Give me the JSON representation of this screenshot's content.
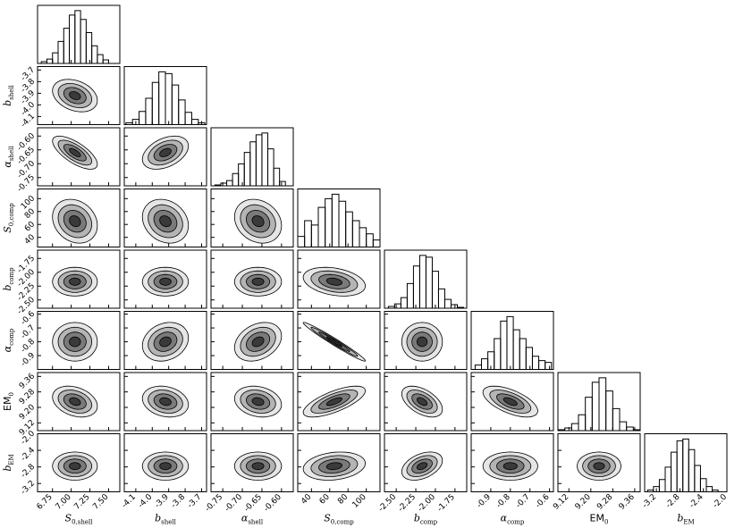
{
  "chart_data": {
    "type": "corner",
    "parameters": [
      {
        "symbol": "S",
        "sub": "0,shell",
        "lim": [
          6.55,
          7.65
        ],
        "ticks": [
          6.75,
          {
            "value": 7,
            "label": "7.00"
          },
          7.25,
          {
            "value": 7.5,
            "label": "7.50"
          }
        ],
        "mean": 7.05,
        "sd": 0.15,
        "bins": [
          6.6,
          6.675,
          6.75,
          6.825,
          6.9,
          6.975,
          7.05,
          7.125,
          7.2,
          7.275,
          7.35,
          7.425,
          7.5
        ],
        "counts": [
          2,
          5,
          12,
          25,
          40,
          55,
          60,
          50,
          35,
          20,
          10,
          4
        ]
      },
      {
        "symbol": "b",
        "sub": "shell",
        "lim": [
          -4.17,
          -3.67
        ],
        "ticks": [
          -4.1,
          {
            "value": -4,
            "label": "-4.0"
          },
          -3.9,
          -3.8,
          -3.7
        ],
        "mean": -3.92,
        "sd": 0.07,
        "bins": [
          -4.16,
          -4.12,
          -4.08,
          -4.04,
          -4.0,
          -3.96,
          -3.92,
          -3.88,
          -3.84,
          -3.8,
          -3.76,
          -3.72,
          -3.68
        ],
        "counts": [
          2,
          6,
          15,
          30,
          48,
          60,
          58,
          45,
          28,
          14,
          6,
          2
        ]
      },
      {
        "symbol": "α",
        "sub": "shell",
        "lim": [
          -0.78,
          -0.57
        ],
        "ticks": [
          -0.75,
          {
            "value": -0.7,
            "label": "-0.70"
          },
          -0.65,
          {
            "value": -0.6,
            "label": "-0.60"
          }
        ],
        "mean": -0.66,
        "sd": 0.03,
        "bins": [
          -0.77,
          -0.755,
          -0.74,
          -0.725,
          -0.71,
          -0.695,
          -0.68,
          -0.665,
          -0.65,
          -0.635,
          -0.62,
          -0.605,
          -0.59
        ],
        "counts": [
          1,
          3,
          6,
          14,
          25,
          38,
          50,
          58,
          60,
          42,
          20,
          5
        ]
      },
      {
        "symbol": "S",
        "sub": "0,comp",
        "lim": [
          25,
          115
        ],
        "ticks": [
          40,
          60,
          80,
          100
        ],
        "mean": 65,
        "sd": 17,
        "bins": [
          25,
          32.5,
          40,
          47.5,
          55,
          62.5,
          70,
          77.5,
          85,
          92.5,
          100,
          107.5,
          115
        ],
        "counts": [
          12,
          30,
          25,
          45,
          55,
          60,
          52,
          40,
          30,
          22,
          15,
          8
        ]
      },
      {
        "symbol": "b",
        "sub": "comp",
        "lim": [
          -2.65,
          -1.6
        ],
        "ticks": [
          {
            "value": -2.5,
            "label": "-2.50"
          },
          -2.25,
          {
            "value": -2,
            "label": "-2.00"
          },
          -1.75
        ],
        "mean": -2.17,
        "sd": 0.13,
        "bins": [
          -2.6,
          -2.52,
          -2.44,
          -2.36,
          -2.28,
          -2.2,
          -2.12,
          -2.04,
          -1.96,
          -1.88,
          -1.8,
          -1.72,
          -1.64
        ],
        "counts": [
          2,
          5,
          12,
          28,
          48,
          60,
          58,
          42,
          22,
          10,
          4,
          1
        ]
      },
      {
        "symbol": "α",
        "sub": "comp",
        "lim": [
          -1.0,
          -0.58
        ],
        "ticks": [
          -0.9,
          -0.8,
          -0.7,
          -0.6
        ],
        "mean": -0.8,
        "sd": 0.07,
        "bins": [
          -0.98,
          -0.9475,
          -0.915,
          -0.8825,
          -0.85,
          -0.8175,
          -0.785,
          -0.7525,
          -0.72,
          -0.6875,
          -0.655,
          -0.6225,
          -0.59
        ],
        "counts": [
          5,
          12,
          20,
          35,
          55,
          60,
          45,
          35,
          25,
          15,
          10,
          8
        ]
      },
      {
        "symbol": "EM",
        "sub": "0",
        "lim": [
          9.08,
          9.38
        ],
        "ticks": [
          9.12,
          {
            "value": 9.2,
            "label": "9.20"
          },
          9.28,
          9.36
        ],
        "mean": 9.23,
        "sd": 0.04,
        "bins": [
          9.08,
          9.105,
          9.13,
          9.155,
          9.18,
          9.205,
          9.23,
          9.255,
          9.28,
          9.305,
          9.33,
          9.355,
          9.38
        ],
        "counts": [
          1,
          3,
          8,
          18,
          38,
          55,
          60,
          45,
          25,
          10,
          4,
          1
        ]
      },
      {
        "symbol": "b",
        "sub": "EM",
        "lim": [
          -3.4,
          -2.0
        ],
        "ticks": [
          -3.2,
          -2.8,
          -2.4,
          {
            "value": -2,
            "label": "-2.0"
          }
        ],
        "mean": -2.78,
        "sd": 0.17,
        "bins": [
          -3.35,
          -3.25,
          -3.15,
          -3.05,
          -2.95,
          -2.85,
          -2.75,
          -2.65,
          -2.55,
          -2.45,
          -2.35,
          -2.25,
          -2.15
        ],
        "counts": [
          2,
          6,
          14,
          28,
          45,
          58,
          60,
          48,
          30,
          15,
          6,
          2
        ]
      }
    ],
    "correlations": [
      [],
      [
        -0.3
      ],
      [
        -0.7,
        0.4
      ],
      [
        -0.2,
        -0.2,
        -0.2
      ],
      [
        0.0,
        0.0,
        0.0,
        -0.3
      ],
      [
        0.0,
        0.2,
        0.3,
        -0.98,
        0.0
      ],
      [
        -0.3,
        -0.2,
        -0.2,
        0.7,
        -0.5,
        -0.6
      ],
      [
        0.0,
        0.0,
        0.0,
        0.2,
        0.4,
        0.0,
        0.0
      ]
    ]
  }
}
